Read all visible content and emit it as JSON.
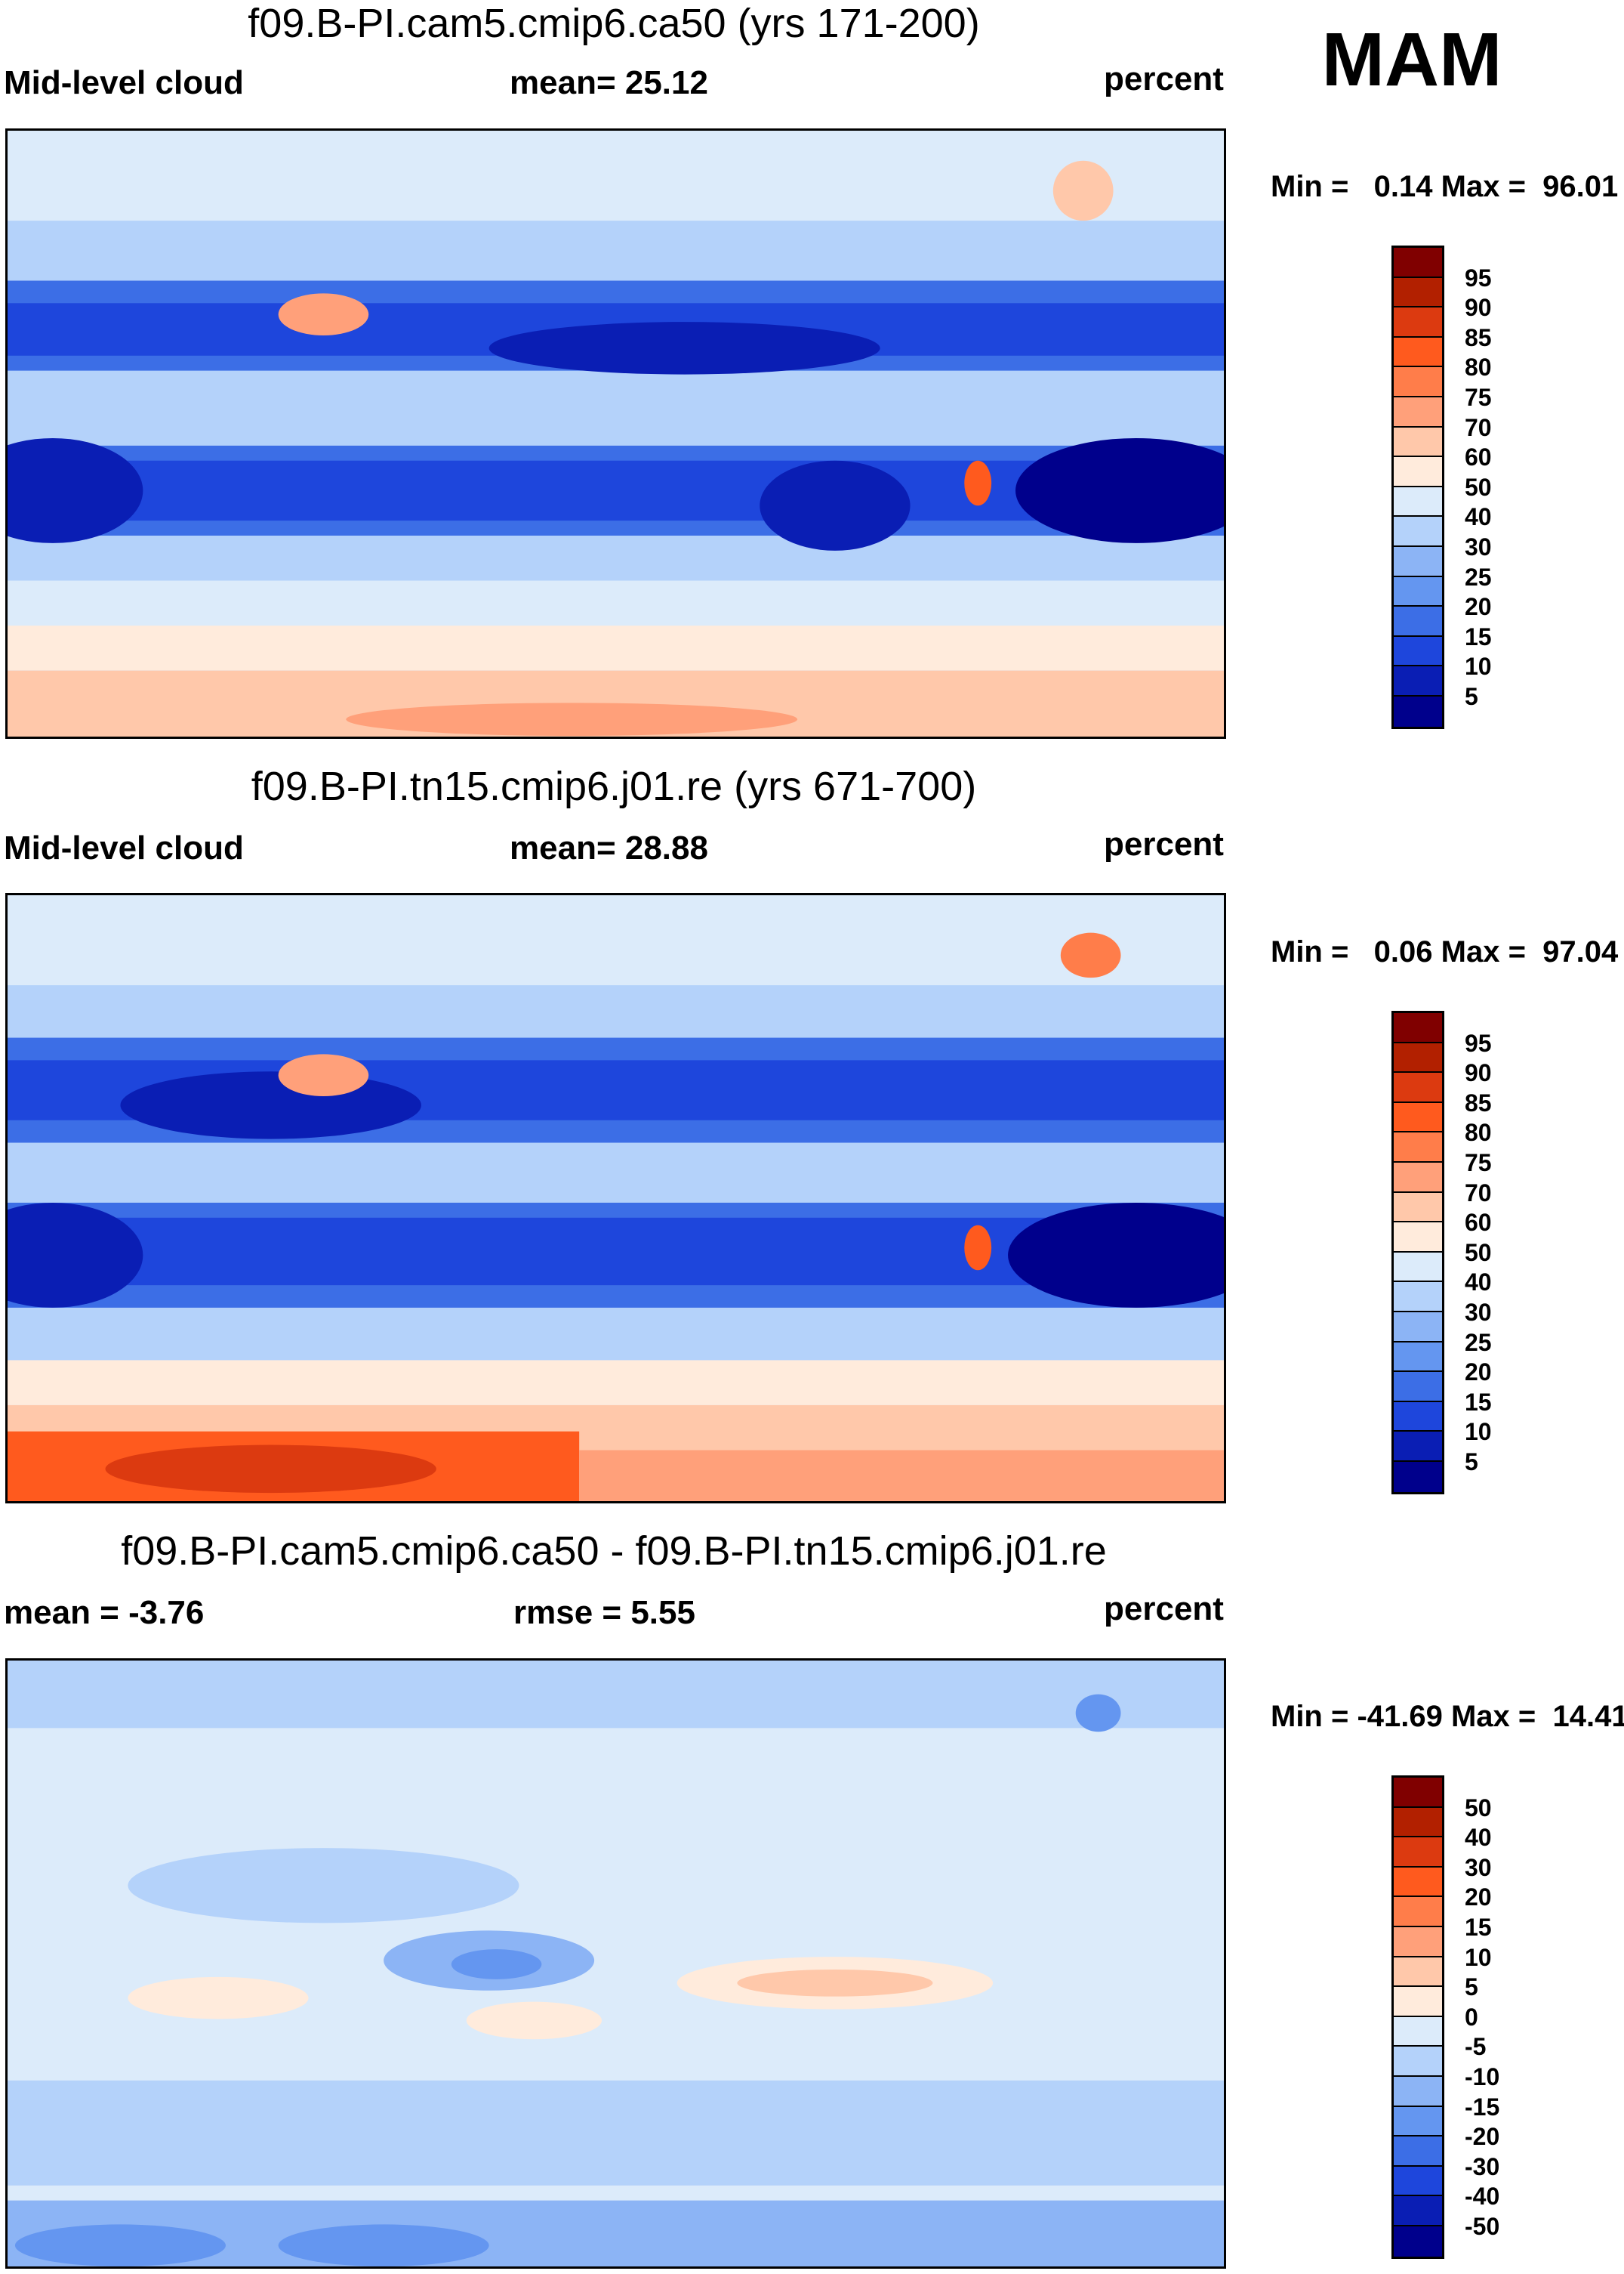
{
  "season": "MAM",
  "panels": [
    {
      "title": "f09.B-PI.cam5.cmip6.ca50 (yrs 171-200)",
      "left": "Mid-level cloud",
      "center": "mean=  25.12",
      "right": "percent",
      "minmax": "Min =   0.14 Max =  96.01",
      "kind": "abs"
    },
    {
      "title": "f09.B-PI.tn15.cmip6.j01.re (yrs 671-700)",
      "left": "Mid-level cloud",
      "center": "mean=  28.88",
      "right": "percent",
      "minmax": "Min =   0.06 Max =  97.04",
      "kind": "abs"
    },
    {
      "title": "f09.B-PI.cam5.cmip6.ca50 - f09.B-PI.tn15.cmip6.j01.re",
      "left": "mean =  -3.76",
      "center": "rmse =   5.55",
      "right": "percent",
      "minmax": "Min = -41.69 Max =  14.41",
      "kind": "diff"
    }
  ],
  "colorbar_abs": {
    "labels": [
      "95",
      "90",
      "85",
      "80",
      "75",
      "70",
      "60",
      "50",
      "40",
      "30",
      "25",
      "20",
      "15",
      "10",
      "5"
    ],
    "colors": [
      "#800000",
      "#b22000",
      "#dc3a10",
      "#ff5a1e",
      "#ff7d4a",
      "#ffa07a",
      "#ffc8aa",
      "#ffebdc",
      "#dcebfa",
      "#b4d2fa",
      "#8cb4f5",
      "#6496f0",
      "#3c6ee6",
      "#1e46dc",
      "#0a1eb4",
      "#00008c"
    ]
  },
  "colorbar_diff": {
    "labels": [
      "50",
      "40",
      "30",
      "20",
      "15",
      "10",
      "5",
      "0",
      "-5",
      "-10",
      "-15",
      "-20",
      "-30",
      "-40",
      "-50"
    ],
    "colors": [
      "#800000",
      "#b22000",
      "#dc3a10",
      "#ff5a1e",
      "#ff7d4a",
      "#ffa07a",
      "#ffc8aa",
      "#ffebdc",
      "#dcebfa",
      "#b4d2fa",
      "#8cb4f5",
      "#6496f0",
      "#3c6ee6",
      "#1e46dc",
      "#0a1eb4",
      "#00008c"
    ]
  }
}
